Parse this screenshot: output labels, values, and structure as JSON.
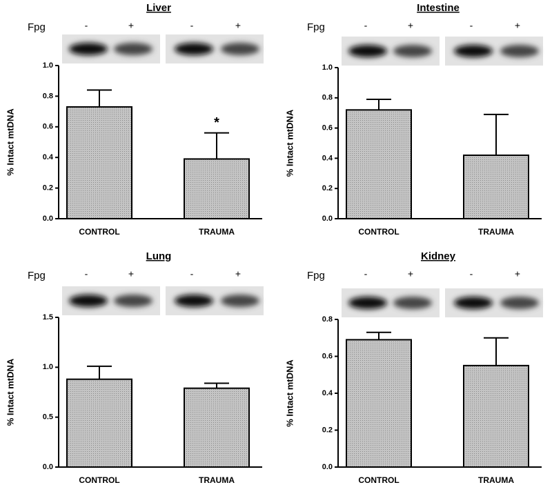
{
  "chart_data": [
    {
      "type": "bar",
      "title": "Liver",
      "y_label": "% Intact mtDNA",
      "fpg_label": "Fpg",
      "blot_lanes": [
        "-",
        "+",
        "-",
        "+"
      ],
      "categories": [
        "CONTROL",
        "TRAUMA"
      ],
      "values": [
        0.73,
        0.39
      ],
      "errors": [
        0.11,
        0.17
      ],
      "color": "#b8b8b8",
      "annotations": [
        {
          "text": "*",
          "category": "TRAUMA"
        }
      ],
      "ylim": [
        0,
        1.0
      ],
      "yticks": [
        {
          "value": 0,
          "label": "0.0"
        },
        0.2,
        0.4,
        0.6,
        0.8,
        {
          "value": 1,
          "label": "1.0"
        }
      ]
    },
    {
      "type": "bar",
      "title": "Intestine",
      "y_label": "% Intact mtDNA",
      "fpg_label": "Fpg",
      "blot_lanes": [
        "-",
        "+",
        "-",
        "+"
      ],
      "categories": [
        "CONTROL",
        "TRAUMA"
      ],
      "values": [
        0.72,
        0.42
      ],
      "errors": [
        0.07,
        0.27
      ],
      "color": "#b8b8b8",
      "ylim": [
        0,
        1.0
      ],
      "yticks": [
        {
          "value": 0,
          "label": "0.0"
        },
        0.2,
        0.4,
        0.6,
        0.8,
        {
          "value": 1,
          "label": "1.0"
        }
      ]
    },
    {
      "type": "bar",
      "title": "Lung",
      "y_label": "% Intact mtDNA",
      "fpg_label": "Fpg",
      "blot_lanes": [
        "-",
        "+",
        "-",
        "+"
      ],
      "categories": [
        "CONTROL",
        "TRAUMA"
      ],
      "values": [
        0.88,
        0.79
      ],
      "errors": [
        0.13,
        0.05
      ],
      "color": "#b8b8b8",
      "ylim": [
        0,
        1.5
      ],
      "yticks": [
        {
          "value": 0,
          "label": "0.0"
        },
        0.5,
        {
          "value": 1,
          "label": "1.0"
        },
        1.5
      ]
    },
    {
      "type": "bar",
      "title": "Kidney",
      "y_label": "% Intact mtDNA",
      "fpg_label": "Fpg",
      "blot_lanes": [
        "-",
        "+",
        "-",
        "+"
      ],
      "categories": [
        "CONTROL",
        "TRAUMA"
      ],
      "values": [
        0.69,
        0.55
      ],
      "errors": [
        0.04,
        0.15
      ],
      "color": "#b8b8b8",
      "ylim": [
        0,
        0.8
      ],
      "yticks": [
        {
          "value": 0,
          "label": "0.0"
        },
        0.2,
        0.4,
        0.6,
        0.8
      ]
    }
  ]
}
